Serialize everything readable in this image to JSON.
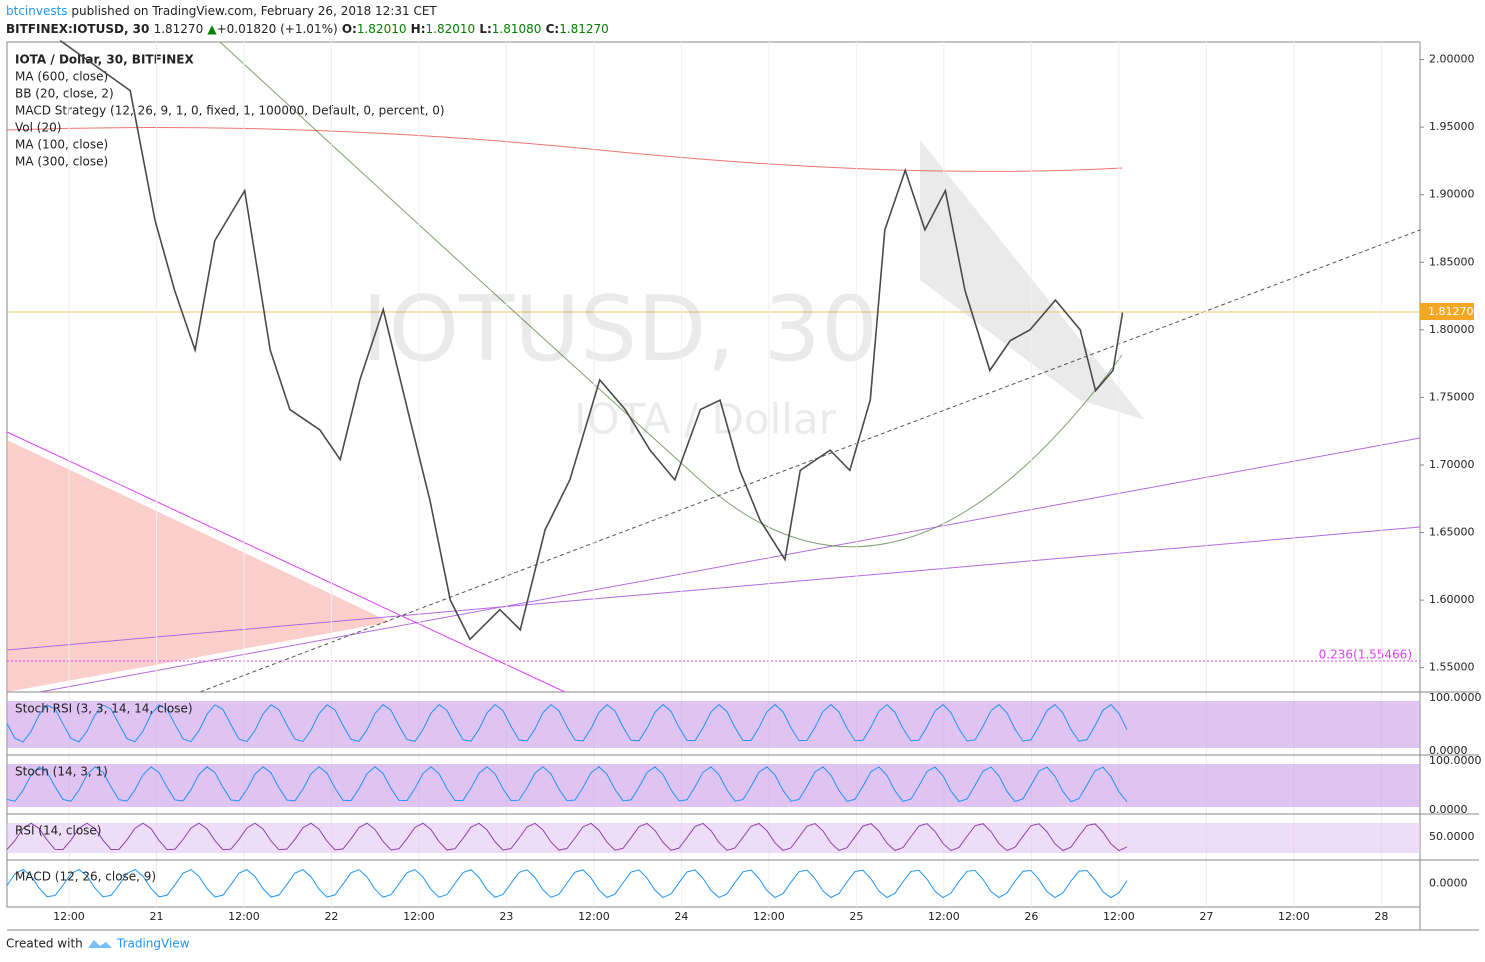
{
  "header": {
    "publisher": "btcinvests",
    "published": "published on TradingView.com, February 26, 2018 12:31 CET"
  },
  "quote": {
    "symbol": "BITFINEX:IOTUSD, 30",
    "last": "1.81270",
    "change": "+0.01820 (+1.01%)",
    "o_label": "O:",
    "open": "1.82010",
    "h_label": "H:",
    "high": "1.82010",
    "l_label": "L:",
    "low": "1.81080",
    "c_label": "C:",
    "close": "1.81270"
  },
  "legend": [
    "IOTA / Dollar, 30, BITFINEX",
    "MA (600, close)",
    "BB (20, close, 2)",
    "MACD Strategy (12, 26, 9, 1, 0, fixed, 1, 100000, Default, 0, percent, 0)",
    "Vol (20)",
    "MA (100, close)",
    "MA (300, close)"
  ],
  "watermark": {
    "symbol": "IOTUSD, 30",
    "name": "IOTA / Dollar"
  },
  "chart_data": {
    "type": "line",
    "color": "#4a4a4a",
    "x": [
      10.8,
      20.4,
      23.8,
      26.5,
      29.3,
      32.0,
      36.1,
      39.6,
      42.3,
      46.4,
      49.2,
      51.9,
      55.1,
      58.8,
      61.5,
      64.3,
      67.0,
      71.1,
      73.9,
      77.3,
      80.7,
      84.8,
      88.3,
      91.7,
      95.1,
      98.6,
      101.3,
      104.0,
      106.8,
      110.2,
      112.3,
      116.4,
      119.1,
      121.9,
      123.9,
      126.7,
      129.4,
      132.2,
      134.9,
      138.3,
      141.1,
      143.8,
      147.3,
      150.7,
      152.8,
      155.2,
      156.5
    ],
    "values": [
      2.014,
      1.977,
      1.881,
      1.829,
      1.785,
      1.866,
      1.903,
      1.785,
      1.741,
      1.726,
      1.704,
      1.763,
      1.815,
      1.733,
      1.674,
      1.6,
      1.571,
      1.593,
      1.578,
      1.652,
      1.689,
      1.763,
      1.741,
      1.711,
      1.689,
      1.741,
      1.748,
      1.696,
      1.659,
      1.63,
      1.696,
      1.711,
      1.696,
      1.748,
      1.874,
      1.918,
      1.874,
      1.903,
      1.829,
      1.77,
      1.792,
      1.8,
      1.822,
      1.8,
      1.755,
      1.77,
      1.8127
    ],
    "xlim": [
      3.5,
      197.3
    ],
    "ylim": [
      1.532,
      2.013
    ],
    "xticks": [
      {
        "value": 12,
        "label": "12:00"
      },
      {
        "value": 24,
        "label": "21"
      },
      {
        "value": 36,
        "label": "12:00"
      },
      {
        "value": 48,
        "label": "22"
      },
      {
        "value": 60,
        "label": "12:00"
      },
      {
        "value": 72,
        "label": "23"
      },
      {
        "value": 84,
        "label": "12:00"
      },
      {
        "value": 96,
        "label": "24"
      },
      {
        "value": 108,
        "label": "12:00"
      },
      {
        "value": 120,
        "label": "25"
      },
      {
        "value": 132,
        "label": "12:00"
      },
      {
        "value": 144,
        "label": "26"
      },
      {
        "value": 156,
        "label": "12:00"
      },
      {
        "value": 168,
        "label": "27"
      },
      {
        "value": 180,
        "label": "12:00"
      },
      {
        "value": 192,
        "label": "28"
      }
    ],
    "yticks": [
      {
        "value": 1.55,
        "label": "1.55000"
      },
      {
        "value": 1.6,
        "label": "1.60000"
      },
      {
        "value": 1.65,
        "label": "1.65000"
      },
      {
        "value": 1.7,
        "label": "1.70000"
      },
      {
        "value": 1.75,
        "label": "1.75000"
      },
      {
        "value": 1.8,
        "label": "1.80000"
      },
      {
        "value": 1.85,
        "label": "1.85000"
      },
      {
        "value": 1.9,
        "label": "1.90000"
      },
      {
        "value": 1.95,
        "label": "1.95000"
      },
      {
        "value": 2,
        "label": "2.00000"
      }
    ],
    "last_label": "1.81270",
    "fib_label": "0.236(1.55466)",
    "grid": true
  },
  "panes": [
    {
      "title": "Stoch RSI (3, 3, 14, 14, close)",
      "ticks": [
        "100.0000",
        "0.0000"
      ]
    },
    {
      "title": "Stoch (14, 3, 1)",
      "ticks": [
        "100.0000",
        "0.0000"
      ]
    },
    {
      "title": "RSI (14, close)",
      "ticks": [
        "50.0000"
      ]
    },
    {
      "title": "MACD (12, 26, close, 9)",
      "ticks": [
        "0.0000"
      ]
    }
  ],
  "footer": {
    "created": "Created with",
    "brand": "TradingView"
  }
}
